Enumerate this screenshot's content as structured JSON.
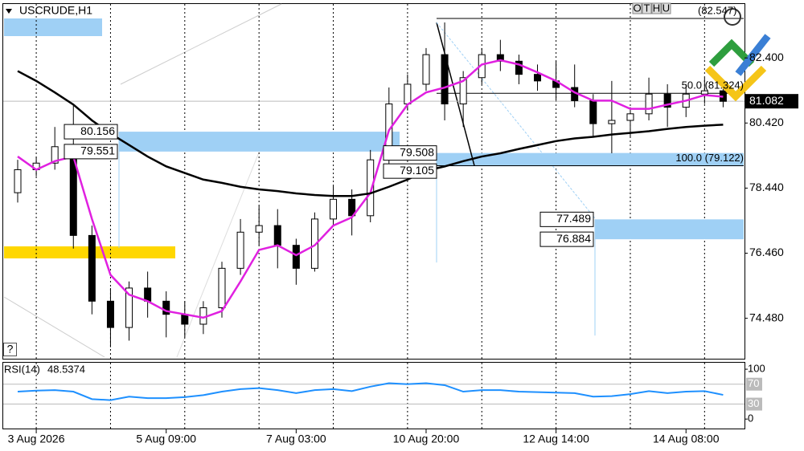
{
  "chart_data": {
    "type": "candlestick",
    "title": "USCRUDE,H1",
    "categories": [
      null,
      "3 Aug 2026",
      null,
      null,
      null,
      null,
      null,
      null,
      "5 Aug 09:00",
      null,
      null,
      null,
      null,
      null,
      null,
      "7 Aug 03:00",
      null,
      null,
      null,
      null,
      null,
      null,
      "10 Aug 20:00",
      null,
      null,
      null,
      null,
      null,
      null,
      "12 Aug 14:00",
      null,
      null,
      null,
      null,
      null,
      null,
      "14 Aug 08:00",
      null,
      null
    ],
    "open": [
      78.3,
      79.0,
      79.2,
      79.7,
      77.0,
      75.0,
      74.2,
      75.4,
      75.0,
      74.6,
      74.3,
      74.8,
      76.0,
      77.1,
      77.3,
      76.7,
      76.0,
      77.5,
      78.1,
      77.6,
      79.3,
      81.0,
      81.6,
      82.5,
      81.0,
      81.8,
      82.5,
      82.3,
      81.9,
      81.7,
      81.5,
      81.1,
      80.4,
      80.5,
      80.7,
      81.3,
      80.9,
      81.3,
      81.4
    ],
    "high": [
      79.3,
      79.4,
      80.3,
      80.95,
      77.3,
      75.4,
      75.6,
      75.9,
      75.3,
      75.0,
      75.0,
      76.2,
      77.5,
      77.9,
      77.8,
      76.9,
      77.7,
      78.5,
      78.4,
      79.6,
      81.5,
      81.9,
      82.7,
      83.48,
      82.0,
      82.7,
      82.95,
      82.5,
      82.2,
      82.3,
      82.2,
      81.3,
      81.7,
      80.9,
      81.8,
      81.6,
      81.6,
      81.8,
      81.6
    ],
    "low": [
      78.0,
      78.8,
      79.0,
      76.6,
      74.6,
      73.6,
      73.8,
      74.5,
      73.9,
      73.9,
      74.0,
      74.5,
      75.8,
      76.7,
      76.0,
      75.5,
      75.9,
      77.3,
      77.0,
      77.4,
      79.1,
      80.8,
      81.4,
      80.5,
      80.3,
      81.6,
      82.0,
      81.6,
      81.4,
      81.1,
      80.9,
      80.0,
      79.5,
      80.0,
      80.5,
      80.3,
      80.6,
      81.0,
      80.9
    ],
    "close": [
      79.0,
      79.2,
      79.7,
      77.0,
      75.0,
      74.2,
      75.4,
      75.0,
      74.6,
      74.3,
      74.8,
      76.0,
      77.1,
      77.3,
      76.7,
      76.0,
      77.5,
      78.1,
      77.6,
      79.3,
      81.0,
      81.6,
      82.5,
      81.0,
      81.8,
      82.5,
      82.3,
      81.9,
      81.7,
      81.5,
      81.1,
      80.4,
      80.5,
      80.7,
      81.3,
      80.9,
      81.3,
      81.4,
      81.08
    ],
    "overlays": [
      {
        "color": "#e020e0",
        "values": [
          79.4,
          79.0,
          79.26,
          79.4,
          77.5,
          75.8,
          75.2,
          75.0,
          74.7,
          74.6,
          74.5,
          74.7,
          75.6,
          76.56,
          76.7,
          76.4,
          76.7,
          77.3,
          77.55,
          78.3,
          80.2,
          80.98,
          81.35,
          81.5,
          81.7,
          82.2,
          82.33,
          82.2,
          81.96,
          81.7,
          81.35,
          81.1,
          81.1,
          80.85,
          80.85,
          80.98,
          81.1,
          81.27,
          81.22
        ]
      },
      {
        "color": "#000000",
        "values": [
          82.0,
          81.7,
          81.35,
          80.98,
          80.5,
          80.1,
          79.75,
          79.4,
          79.1,
          78.9,
          78.7,
          78.6,
          78.48,
          78.4,
          78.35,
          78.28,
          78.23,
          78.2,
          78.2,
          78.28,
          78.48,
          78.7,
          78.97,
          79.1,
          79.26,
          79.4,
          79.5,
          79.63,
          79.75,
          79.87,
          79.95,
          80.0,
          80.07,
          80.12,
          80.17,
          80.24,
          80.3,
          80.34,
          80.37
        ]
      }
    ],
    "ylim": [
      73.25,
      84.04
    ],
    "yticks": [
      {
        "value": 74.48,
        "label": "74.480"
      },
      {
        "value": 76.46,
        "label": "76.460"
      },
      {
        "value": 78.44,
        "label": "78.440"
      },
      {
        "value": 80.42,
        "label": "80.420"
      },
      {
        "value": 82.4,
        "label": "82.400"
      }
    ],
    "current_price": 81.082,
    "zones": [
      {
        "top": 80.156,
        "bottom": 79.551
      },
      {
        "top": 79.508,
        "bottom": 79.105
      },
      {
        "top": 77.489,
        "bottom": 76.884
      }
    ],
    "fib_levels": [
      {
        "label": "50.0 (81.324)",
        "value": 81.324
      },
      {
        "label": "100.0 (79.122)",
        "value": 79.122
      }
    ],
    "fib_top_label": "(82.547)",
    "toolbar": [
      "O",
      "T",
      "H",
      "U"
    ],
    "help_label": "?",
    "rsi": {
      "label": "RSI(14)",
      "current": 48.5374,
      "color": "#1e90ff",
      "values": [
        55,
        57,
        58,
        55,
        40,
        38,
        45,
        42,
        42,
        44,
        48,
        55,
        60,
        62,
        58,
        52,
        58,
        60,
        56,
        65,
        72,
        70,
        72,
        68,
        55,
        58,
        58,
        55,
        54,
        53,
        52,
        45,
        46,
        50,
        56,
        52,
        55,
        56,
        48.5374
      ],
      "ylim": [
        -19,
        113
      ],
      "yticks": [
        100,
        70,
        30,
        0
      ],
      "levels": [
        70,
        30
      ]
    }
  }
}
